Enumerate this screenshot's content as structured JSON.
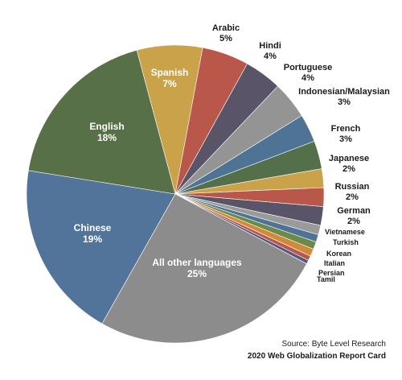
{
  "chart_data": {
    "type": "pie",
    "title": "",
    "slices": [
      {
        "label": "Spanish",
        "value": 7,
        "value_label": "7%",
        "color": "#c9a24a",
        "label_pos": "inside"
      },
      {
        "label": "Arabic",
        "value": 5,
        "value_label": "5%",
        "color": "#b8574a",
        "label_pos": "outside"
      },
      {
        "label": "Hindi",
        "value": 4,
        "value_label": "4%",
        "color": "#595468",
        "label_pos": "outside"
      },
      {
        "label": "Portuguese",
        "value": 4,
        "value_label": "4%",
        "color": "#949494",
        "label_pos": "outside"
      },
      {
        "label": "Indonesian/Malaysian",
        "value": 3,
        "value_label": "3%",
        "color": "#4f7394",
        "label_pos": "outside"
      },
      {
        "label": "French",
        "value": 3,
        "value_label": "3%",
        "color": "#54704a",
        "label_pos": "outside"
      },
      {
        "label": "Japanese",
        "value": 2,
        "value_label": "2%",
        "color": "#c9a24a",
        "label_pos": "outside"
      },
      {
        "label": "Russian",
        "value": 2,
        "value_label": "2%",
        "color": "#b8574a",
        "label_pos": "outside"
      },
      {
        "label": "German",
        "value": 2,
        "value_label": "2%",
        "color": "#595468",
        "label_pos": "outside"
      },
      {
        "label": "Vietnamese",
        "value": 1,
        "value_label": "",
        "color": "#9a9a9a",
        "label_pos": "outside"
      },
      {
        "label": "Turkish",
        "value": 0.8,
        "value_label": "",
        "color": "#4f7394",
        "label_pos": "outside"
      },
      {
        "label": "Korean",
        "value": 0.8,
        "value_label": "",
        "color": "#6b8a4a",
        "label_pos": "outside"
      },
      {
        "label": "Italian",
        "value": 0.8,
        "value_label": "",
        "color": "#d08a3a",
        "label_pos": "outside"
      },
      {
        "label": "Persian",
        "value": 0.5,
        "value_label": "",
        "color": "#b8574a",
        "label_pos": "outside"
      },
      {
        "label": "Tamil",
        "value": 0.4,
        "value_label": "",
        "color": "#5a5580",
        "label_pos": "outside"
      },
      {
        "label": "All other languages",
        "value": 25,
        "value_label": "25%",
        "color": "#8c8c8c",
        "label_pos": "inside"
      },
      {
        "label": "Chinese",
        "value": 19,
        "value_label": "19%",
        "color": "#52749a",
        "label_pos": "inside"
      },
      {
        "label": "English",
        "value": 18,
        "value_label": "18%",
        "color": "#577048",
        "label_pos": "inside"
      }
    ]
  },
  "footer": {
    "source": "Source: Byte Level Research",
    "report": "2020 Web Globalization Report Card"
  }
}
